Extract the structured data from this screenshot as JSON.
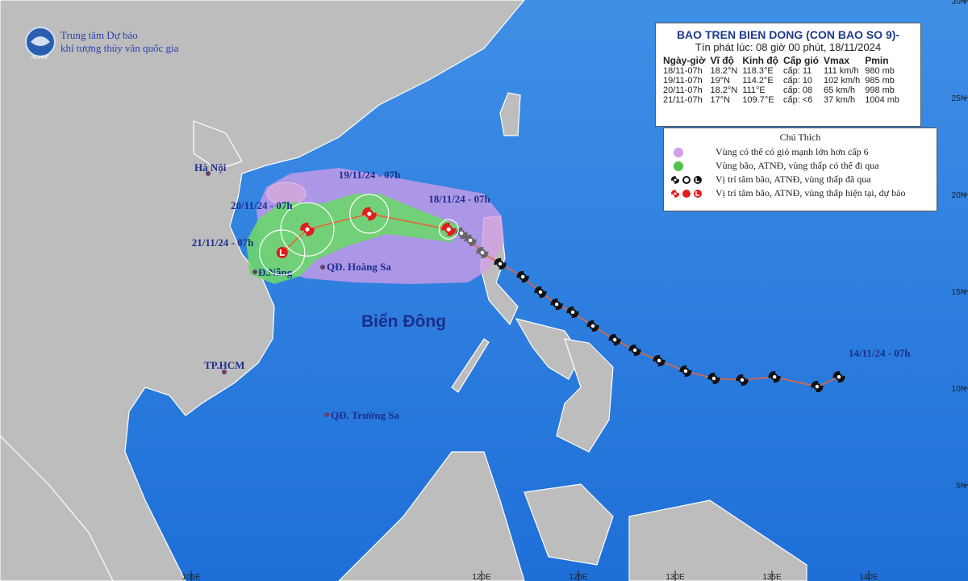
{
  "header": {
    "org_line1": "Trung tâm Dự báo",
    "org_line2": "khí tượng thủy văn quốc gia",
    "logo": "NCHMF"
  },
  "bulletin": {
    "title": "BAO TREN BIEN DONG (CON BAO SO 9)-",
    "issued": "Tín phát lúc: 08 giờ 00 phút, 18/11/2024",
    "columns": [
      "Ngày-giờ",
      "Vĩ độ",
      "Kinh độ",
      "Cấp gió",
      "Vmax",
      "Pmin"
    ],
    "rows": [
      [
        "18/11-07h",
        "18.2°N",
        "118.3°E",
        "cấp: 11",
        "111 km/h",
        "980 mb"
      ],
      [
        "19/11-07h",
        "19°N",
        "114.2°E",
        "cấp: 10",
        "102 km/h",
        "985 mb"
      ],
      [
        "20/11-07h",
        "18.2°N",
        "111°E",
        "cấp: 08",
        "65 km/h",
        "998 mb"
      ],
      [
        "21/11-07h",
        "17°N",
        "109.7°E",
        "cấp: <6",
        "37 km/h",
        "1004 mb"
      ]
    ]
  },
  "legend": {
    "title": "Chú Thích",
    "items": [
      "Vùng có thể có gió mạnh lớn hơn cấp 6",
      "Vùng bão, ATNĐ, vùng thấp có thể đi qua",
      "Vị trí tâm bão, ATNĐ, vùng thấp đã qua",
      "Vị trí tâm bão, ATNĐ, vùng thấp hiện tại, dự báo"
    ]
  },
  "forecast": [
    {
      "label": "18/11/24 - 07h",
      "lat": 18.2,
      "lon": 118.3
    },
    {
      "label": "19/11/24 - 07h",
      "lat": 19,
      "lon": 114.2
    },
    {
      "label": "20/11/24 - 07h",
      "lat": 18.2,
      "lon": 111
    },
    {
      "label": "21/11/24 - 07h",
      "lat": 17,
      "lon": 109.7
    }
  ],
  "past_track": {
    "start_label": "14/11/24 - 07h",
    "lon": [
      138.46,
      137.33,
      135.13,
      133.46,
      132.0,
      130.54,
      129.17,
      127.92,
      126.88,
      125.75,
      124.71,
      123.88,
      123.04,
      122.13,
      120.96,
      120.04,
      119.42,
      118.96
    ],
    "lat": [
      10.58,
      10.08,
      10.58,
      10.42,
      10.5,
      10.88,
      11.42,
      11.96,
      12.5,
      13.21,
      13.92,
      14.33,
      14.96,
      15.75,
      16.42,
      17.0,
      17.63,
      18.0
    ]
  },
  "places": {
    "hanoi": "Hà Nội",
    "danang": "Đ.Nẵng",
    "hoangsa": "QĐ. Hoàng Sa",
    "sea": "Biển Đông",
    "hcm": "TP.HCM",
    "truongsa": "QĐ. Trường Sa"
  },
  "lat_ticks": [
    {
      "value": 5,
      "label": "5N"
    },
    {
      "value": 10,
      "label": "10N"
    },
    {
      "value": 15,
      "label": "15N"
    },
    {
      "value": 20,
      "label": "20N"
    },
    {
      "value": 25,
      "label": "25N"
    },
    {
      "value": 30,
      "label": "30N"
    }
  ],
  "lon_ticks": [
    {
      "value": 105,
      "label": "105E"
    },
    {
      "value": 120,
      "label": "120E"
    },
    {
      "value": 125,
      "label": "125E"
    },
    {
      "value": 130,
      "label": "130E"
    },
    {
      "value": 135,
      "label": "135E"
    },
    {
      "value": 140,
      "label": "140E"
    }
  ]
}
